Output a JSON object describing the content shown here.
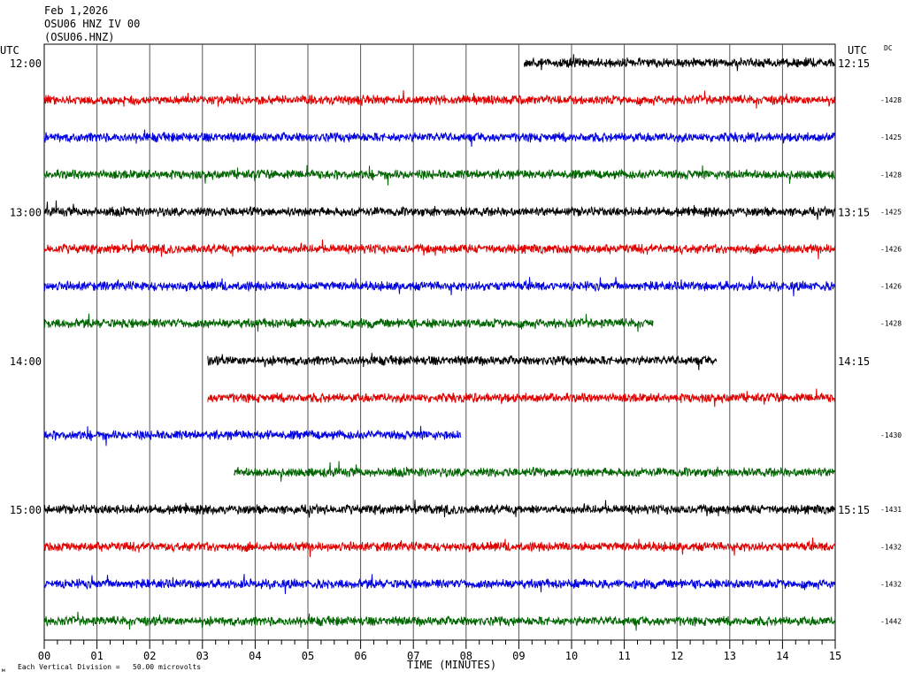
{
  "header": {
    "date": "Feb 1,2026",
    "station": "OSU06 HNZ IV 00",
    "code": "(OSU06.HNZ)"
  },
  "left_axis_label": "UTC",
  "right_axis_label": "UTC",
  "dc_label": "DC",
  "footer": {
    "scale_note": "Each Vertical Division =   50.00 microvolts",
    "corner_mark": "м"
  },
  "chart_data": {
    "type": "line",
    "title": "",
    "xlabel": "TIME (MINUTES)",
    "ylabel": "",
    "xlim": [
      0,
      15
    ],
    "x_ticks": [
      "00",
      "01",
      "02",
      "03",
      "04",
      "05",
      "06",
      "07",
      "08",
      "09",
      "10",
      "11",
      "12",
      "13",
      "14",
      "15"
    ],
    "grid": true,
    "colors": {
      "black": "#000000",
      "red": "#e00000",
      "blue": "#0000e0",
      "green": "#006400"
    },
    "rows": [
      {
        "color": "black",
        "start": 9.1,
        "end": 15,
        "left_label": "12:00",
        "right_label": "12:15",
        "dc": ""
      },
      {
        "color": "red",
        "start": 0,
        "end": 15,
        "left_label": "",
        "right_label": "",
        "dc": "-1428"
      },
      {
        "color": "blue",
        "start": 0,
        "end": 15,
        "left_label": "",
        "right_label": "",
        "dc": "-1425"
      },
      {
        "color": "green",
        "start": 0,
        "end": 15,
        "left_label": "",
        "right_label": "",
        "dc": "-1428"
      },
      {
        "color": "black",
        "start": 0,
        "end": 15,
        "left_label": "13:00",
        "right_label": "13:15",
        "dc": "-1425"
      },
      {
        "color": "red",
        "start": 0,
        "end": 15,
        "left_label": "",
        "right_label": "",
        "dc": "-1426"
      },
      {
        "color": "blue",
        "start": 0,
        "end": 15,
        "left_label": "",
        "right_label": "",
        "dc": "-1426"
      },
      {
        "color": "green",
        "start": 0,
        "end": 11.55,
        "left_label": "",
        "right_label": "",
        "dc": "-1428"
      },
      {
        "color": "black",
        "start": 3.1,
        "end": 12.75,
        "left_label": "14:00",
        "right_label": "14:15",
        "dc": ""
      },
      {
        "color": "red",
        "start": 3.1,
        "end": 15,
        "left_label": "",
        "right_label": "",
        "dc": ""
      },
      {
        "color": "blue",
        "start": 0,
        "end": 7.9,
        "left_label": "",
        "right_label": "",
        "dc": "-1430"
      },
      {
        "color": "green",
        "start": 3.6,
        "end": 15,
        "left_label": "",
        "right_label": "",
        "dc": ""
      },
      {
        "color": "black",
        "start": 0,
        "end": 15,
        "left_label": "15:00",
        "right_label": "15:15",
        "dc": "-1431"
      },
      {
        "color": "red",
        "start": 0,
        "end": 15,
        "left_label": "",
        "right_label": "",
        "dc": "-1432"
      },
      {
        "color": "blue",
        "start": 0,
        "end": 15,
        "left_label": "",
        "right_label": "",
        "dc": "-1432"
      },
      {
        "color": "green",
        "start": 0,
        "end": 15,
        "left_label": "",
        "right_label": "",
        "dc": "-1442"
      }
    ]
  }
}
